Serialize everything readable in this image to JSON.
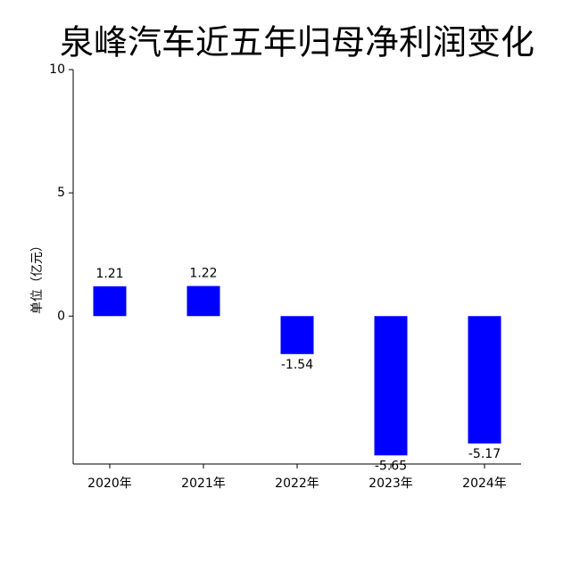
{
  "chart_data": {
    "type": "bar",
    "title": "泉峰汽车近五年归母净利润变化",
    "y_label": "单位（亿元）",
    "categories": [
      "2020年",
      "2021年",
      "2022年",
      "2023年",
      "2024年"
    ],
    "values": [
      1.21,
      1.22,
      -1.54,
      -5.65,
      -5.17
    ],
    "color": "#0000ff",
    "ylim": [
      -6,
      10
    ],
    "yticks": [
      0,
      5,
      10
    ],
    "grid": false
  }
}
